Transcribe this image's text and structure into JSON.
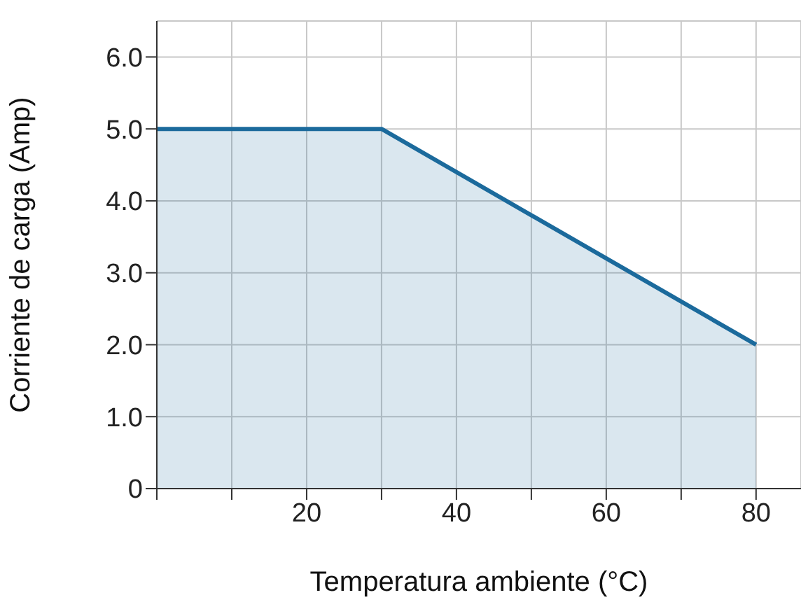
{
  "chart_data": {
    "type": "area",
    "xlabel": "Temperatura ambiente (°C)",
    "ylabel": "Corriente de carga (Amp)",
    "x": [
      0,
      30,
      80
    ],
    "series": [
      {
        "color": "#1b6a9c",
        "values": [
          5,
          5,
          2
        ]
      }
    ],
    "xlim": [
      0,
      86
    ],
    "xticks": [
      {
        "value": 0,
        "label": null
      },
      {
        "value": 10,
        "label": null
      },
      20,
      {
        "value": 30,
        "label": null
      },
      40,
      {
        "value": 50,
        "label": null
      },
      60,
      {
        "value": 70,
        "label": null
      },
      80
    ],
    "ylim": [
      0,
      6.5
    ],
    "yticks": [
      0,
      {
        "value": 1,
        "label": "1.0"
      },
      {
        "value": 2,
        "label": "2.0"
      },
      {
        "value": 3,
        "label": "3.0"
      },
      {
        "value": 4,
        "label": "4.0"
      },
      {
        "value": 5,
        "label": "5.0"
      },
      {
        "value": 6,
        "label": "6.0"
      }
    ],
    "grid": true,
    "marker": "none",
    "legend": false
  }
}
